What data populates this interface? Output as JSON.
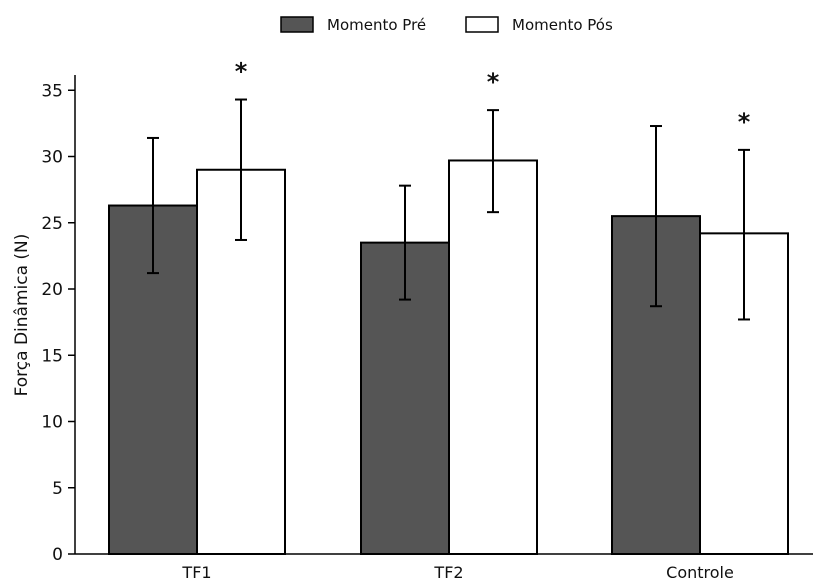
{
  "chart_data": {
    "type": "bar",
    "title": "",
    "xlabel": "",
    "ylabel": "Força Dinâmica (N)",
    "categories": [
      "TF1",
      "TF2",
      "Controle"
    ],
    "ylim": [
      0,
      36
    ],
    "yticks": [
      0,
      5,
      10,
      15,
      20,
      25,
      30,
      35
    ],
    "grid": false,
    "legend_position": "top-center",
    "series": [
      {
        "name": "Momento Pré",
        "color": "#555555",
        "values": [
          26.3,
          23.5,
          25.5
        ],
        "error_low": [
          21.2,
          19.2,
          18.7
        ],
        "error_high": [
          31.4,
          27.8,
          32.3
        ]
      },
      {
        "name": "Momento Pós",
        "color": "#ffffff",
        "values": [
          29.0,
          29.7,
          24.2
        ],
        "error_low": [
          23.7,
          25.8,
          17.7
        ],
        "error_high": [
          34.3,
          33.5,
          30.5
        ]
      }
    ],
    "annotations": [
      "*",
      "*",
      "*"
    ]
  }
}
